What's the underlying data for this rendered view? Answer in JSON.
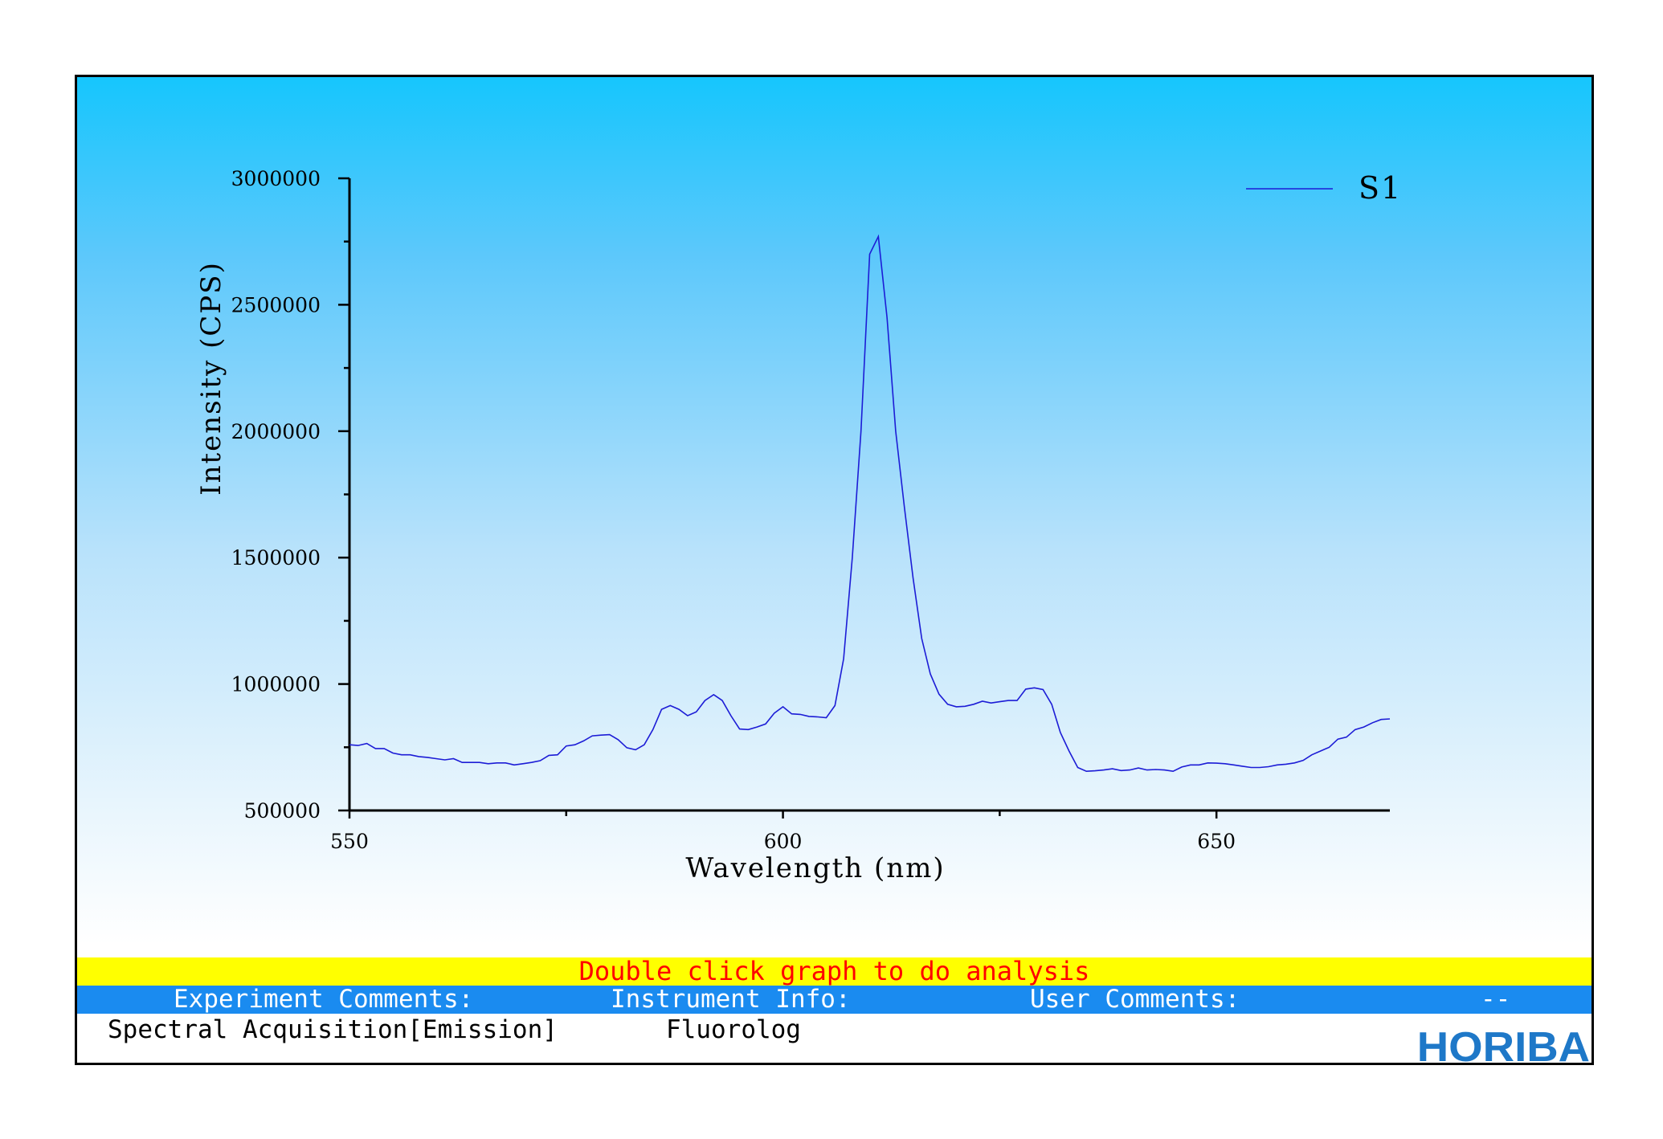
{
  "chart_data": {
    "type": "line",
    "title": "",
    "xlabel": "Wavelength (nm)",
    "ylabel": "Intensity (CPS)",
    "xlim": [
      550,
      670
    ],
    "ylim": [
      500000,
      3000000
    ],
    "x_ticks": [
      550,
      600,
      650
    ],
    "y_ticks": [
      500000,
      1000000,
      1500000,
      2000000,
      2500000,
      3000000
    ],
    "legend_position": "top-right",
    "grid": false,
    "series": [
      {
        "name": "S1",
        "color": "#1c1cd6",
        "x": [
          550,
          551,
          552,
          553,
          554,
          555,
          556,
          557,
          558,
          559,
          560,
          561,
          562,
          563,
          564,
          565,
          566,
          567,
          568,
          569,
          570,
          571,
          572,
          573,
          574,
          575,
          576,
          577,
          578,
          579,
          580,
          581,
          582,
          583,
          584,
          585,
          586,
          587,
          588,
          589,
          590,
          591,
          592,
          593,
          594,
          595,
          596,
          597,
          598,
          599,
          600,
          601,
          602,
          603,
          604,
          605,
          606,
          607,
          608,
          609,
          610,
          611,
          612,
          613,
          614,
          615,
          616,
          617,
          618,
          619,
          620,
          621,
          622,
          623,
          624,
          625,
          626,
          627,
          628,
          629,
          630,
          631,
          632,
          633,
          634,
          635,
          636,
          637,
          638,
          639,
          640,
          641,
          642,
          643,
          644,
          645,
          646,
          647,
          648,
          649,
          650,
          651,
          652,
          653,
          654,
          655,
          656,
          657,
          658,
          659,
          660,
          661,
          662,
          663,
          664,
          665,
          666,
          667,
          668,
          669,
          670
        ],
        "values": [
          760000,
          757000,
          765000,
          745000,
          745000,
          727000,
          720000,
          720000,
          713000,
          710000,
          705000,
          700000,
          705000,
          690000,
          690000,
          690000,
          685000,
          688000,
          688000,
          680000,
          685000,
          690000,
          697000,
          718000,
          720000,
          755000,
          760000,
          775000,
          795000,
          798000,
          800000,
          780000,
          748000,
          740000,
          760000,
          820000,
          900000,
          915000,
          900000,
          875000,
          890000,
          935000,
          958000,
          935000,
          875000,
          822000,
          820000,
          830000,
          842000,
          885000,
          910000,
          882000,
          880000,
          872000,
          870000,
          867000,
          915000,
          1100000,
          1500000,
          2000000,
          2700000,
          2770000,
          2450000,
          2000000,
          1700000,
          1420000,
          1180000,
          1040000,
          960000,
          920000,
          910000,
          912000,
          920000,
          932000,
          925000,
          930000,
          935000,
          935000,
          980000,
          985000,
          978000,
          920000,
          808000,
          735000,
          670000,
          655000,
          657000,
          660000,
          665000,
          658000,
          660000,
          668000,
          660000,
          662000,
          660000,
          655000,
          672000,
          680000,
          680000,
          688000,
          687000,
          685000,
          680000,
          675000,
          670000,
          670000,
          673000,
          680000,
          683000,
          688000,
          698000,
          720000,
          735000,
          750000,
          782000,
          790000,
          820000,
          830000,
          847000,
          860000,
          862000
        ]
      }
    ]
  },
  "footer": {
    "analysis_hint": "Double click graph to do analysis",
    "experiment_label": "Experiment Comments:",
    "instrument_label": "Instrument Info:",
    "user_label": "User Comments:",
    "user_value": "--",
    "experiment_value": "Spectral Acquisition[Emission]",
    "instrument_value": "Fluorolog",
    "logo": "HORIBA"
  }
}
